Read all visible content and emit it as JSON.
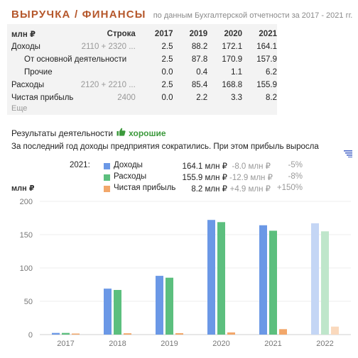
{
  "header": {
    "title": "ВЫРУЧКА / ФИНАНСЫ",
    "subtitle": "по данным Бухгалтерской отчетности за 2017 - 2021 гг."
  },
  "fin_table": {
    "headers": [
      "млн ₽",
      "Строка",
      "2017",
      "2019",
      "2020",
      "2021"
    ],
    "rows": [
      {
        "name": "Доходы",
        "code": "2110 + 2320 ...",
        "values": [
          "2.5",
          "88.2",
          "172.1",
          "164.1"
        ]
      },
      {
        "name": "От основной деятельности",
        "code": "",
        "values": [
          "2.5",
          "87.8",
          "170.9",
          "157.9"
        ]
      },
      {
        "name": "Прочие",
        "code": "",
        "values": [
          "0.0",
          "0.4",
          "1.1",
          "6.2"
        ]
      },
      {
        "name": "Расходы",
        "code": "2120 + 2210 ...",
        "values": [
          "2.5",
          "85.4",
          "168.8",
          "155.9"
        ]
      },
      {
        "name": "Чистая прибыль",
        "code": "2400",
        "values": [
          "0.0",
          "2.2",
          "3.3",
          "8.2"
        ]
      }
    ],
    "more_label": "Еще"
  },
  "results": {
    "label": "Результаты деятельности",
    "status": "хорошие",
    "summary": "За последний год доходы предприятия сократились. При этом прибыль выросла"
  },
  "legend": {
    "year": "2021:",
    "items": [
      {
        "name": "Доходы",
        "value": "164.1 млн ₽",
        "delta": "-8.0 млн ₽",
        "pct": "-5%",
        "color": "#6b98e6"
      },
      {
        "name": "Расходы",
        "value": "155.9 млн ₽",
        "delta": "-12.9 млн ₽",
        "pct": "-8%",
        "color": "#5cbf7e"
      },
      {
        "name": "Чистая прибыль",
        "value": "8.2 млн ₽",
        "delta": "+4.9 млн ₽",
        "pct": "+150%",
        "color": "#f2a76a"
      }
    ]
  },
  "chart_data": {
    "type": "bar",
    "ylabel": "млн ₽",
    "ylim": [
      0,
      200
    ],
    "yticks": [
      0,
      50,
      100,
      150,
      200
    ],
    "categories": [
      "2017",
      "2018",
      "2019",
      "2020",
      "2021",
      "2022"
    ],
    "series": [
      {
        "name": "Доходы",
        "color": "#6b98e6",
        "faded_color": "#c4d6f5",
        "values": [
          2.5,
          69,
          88.2,
          172.1,
          164.1,
          167
        ]
      },
      {
        "name": "Расходы",
        "color": "#5cbf7e",
        "faded_color": "#bfe6cb",
        "values": [
          2.5,
          67,
          85.4,
          168.8,
          155.9,
          155
        ]
      },
      {
        "name": "Чистая прибыль",
        "color": "#f2a76a",
        "faded_color": "#fad9bd",
        "values": [
          0.0,
          2,
          2.2,
          3.3,
          8.2,
          12
        ]
      }
    ],
    "faded_categories": [
      "2022"
    ],
    "grid": true,
    "legend_position": "top"
  }
}
